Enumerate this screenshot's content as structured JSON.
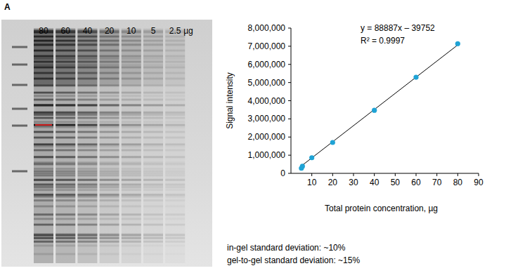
{
  "panel_label": "A",
  "gel": {
    "lanes": [
      80,
      60,
      40,
      20,
      10,
      5,
      2.5
    ],
    "unit": "µg"
  },
  "notes": [
    "in-gel standard deviation: ~10%",
    "gel-to-gel standard deviation: ~15%"
  ],
  "chart_data": {
    "type": "scatter",
    "xlabel": "Total protein concentration, µg",
    "ylabel": "Signal intensity",
    "annotations": [
      "y = 88887x – 39752",
      "R² = 0.9997"
    ],
    "series": [
      {
        "type": "scatter",
        "color": "#1fa3d5",
        "marker": "circle",
        "x": [
          5,
          5.5,
          10,
          20,
          40,
          60,
          80
        ],
        "values": [
          280000,
          390000,
          860000,
          1700000,
          3470000,
          5290000,
          7140000
        ]
      },
      {
        "type": "line",
        "color": "#000000",
        "line_style": "solid",
        "x": [
          5,
          80
        ],
        "values": [
          405000,
          7071000
        ]
      }
    ],
    "xlim": [
      0,
      90
    ],
    "xticks": [
      10,
      20,
      30,
      40,
      50,
      60,
      70,
      80,
      90
    ],
    "ylim": [
      0,
      8000000
    ],
    "yticks": [
      0,
      {
        "value": 1000000,
        "label": "1,000,000"
      },
      {
        "value": 2000000,
        "label": "2,000,000"
      },
      {
        "value": 3000000,
        "label": "3,000,000"
      },
      {
        "value": 4000000,
        "label": "4,000,000"
      },
      {
        "value": 5000000,
        "label": "5,000,000"
      },
      {
        "value": 6000000,
        "label": "6,000,000"
      },
      {
        "value": 7000000,
        "label": "7,000,000"
      },
      {
        "value": 8000000,
        "label": "8,000,000"
      }
    ],
    "grid": false
  }
}
